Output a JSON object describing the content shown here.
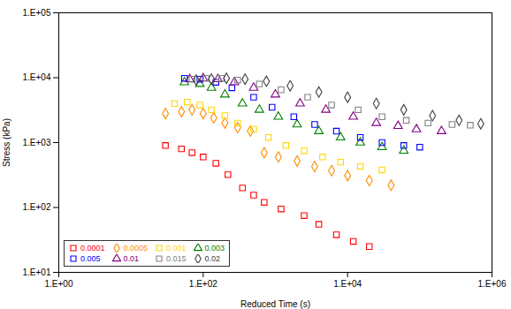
{
  "chart_data": {
    "type": "scatter",
    "xlabel": "Reduced Time (s)",
    "ylabel": "Stress (kPa)",
    "log": true,
    "grid": false,
    "legend": "lower left",
    "xlim": [
      1,
      1000000
    ],
    "ylim": [
      10,
      100000
    ],
    "xticks": [
      {
        "value": 1,
        "label": "1.E+00"
      },
      {
        "value": 100,
        "label": "1.E+02"
      },
      {
        "value": 10000,
        "label": "1.E+04"
      },
      {
        "value": 1000000,
        "label": "1.E+06"
      }
    ],
    "yticks": [
      {
        "value": 10,
        "label": "1.E+01"
      },
      {
        "value": 100,
        "label": "1.E+02"
      },
      {
        "value": 1000,
        "label": "1.E+03"
      },
      {
        "value": 10000,
        "label": "1.E+04"
      },
      {
        "value": 100000,
        "label": "1.E+05"
      }
    ],
    "series": [
      {
        "name": "0.0001",
        "color": "#FF0000",
        "marker": "square",
        "x": [
          30,
          50,
          70,
          100,
          150,
          220,
          350,
          500,
          700,
          1200,
          2500,
          4000,
          7000,
          12000,
          20000
        ],
        "values": [
          900,
          800,
          700,
          600,
          480,
          320,
          200,
          155,
          120,
          95,
          75,
          55,
          38,
          30,
          25
        ]
      },
      {
        "name": "0.0005",
        "color": "#FF8C00",
        "marker": "diamond",
        "x": [
          30,
          50,
          70,
          100,
          140,
          200,
          300,
          450,
          700,
          1100,
          2000,
          3500,
          6000,
          10000,
          20000,
          40000
        ],
        "values": [
          2800,
          3000,
          3200,
          2800,
          2400,
          2000,
          1700,
          1500,
          700,
          600,
          520,
          430,
          370,
          310,
          260,
          220
        ]
      },
      {
        "name": "0.001",
        "color": "#FFD700",
        "marker": "square",
        "x": [
          40,
          60,
          90,
          130,
          200,
          300,
          500,
          800,
          1400,
          2500,
          4500,
          8000,
          15000,
          30000
        ],
        "values": [
          4000,
          4200,
          3800,
          3200,
          2600,
          2000,
          1600,
          1200,
          900,
          750,
          600,
          500,
          430,
          380
        ]
      },
      {
        "name": "0.003",
        "color": "#008000",
        "marker": "triangle",
        "x": [
          55,
          90,
          130,
          200,
          350,
          600,
          1100,
          2000,
          4000,
          8000,
          15000,
          30000,
          60000
        ],
        "values": [
          8500,
          8000,
          7000,
          5500,
          4000,
          3200,
          2500,
          1900,
          1500,
          1200,
          1000,
          850,
          750
        ]
      },
      {
        "name": "0.005",
        "color": "#0000FF",
        "marker": "square",
        "x": [
          55,
          90,
          150,
          250,
          500,
          900,
          1800,
          3500,
          7000,
          15000,
          30000,
          60000,
          100000
        ],
        "values": [
          9800,
          9500,
          8500,
          7000,
          5000,
          3500,
          2500,
          1900,
          1500,
          1200,
          1000,
          900,
          850
        ]
      },
      {
        "name": "0.01",
        "color": "#800080",
        "marker": "triangle",
        "x": [
          65,
          100,
          160,
          270,
          500,
          1000,
          2200,
          5000,
          12000,
          25000,
          50000,
          90000,
          200000
        ],
        "values": [
          9500,
          9800,
          9500,
          8500,
          7000,
          5500,
          4000,
          3200,
          2500,
          2000,
          1800,
          1600,
          1500
        ]
      },
      {
        "name": "0.015",
        "color": "#808080",
        "marker": "square",
        "x": [
          70,
          110,
          180,
          300,
          600,
          1200,
          2800,
          6000,
          14000,
          30000,
          65000,
          130000,
          280000,
          500000
        ],
        "values": [
          9500,
          9800,
          9800,
          9200,
          8000,
          6500,
          5000,
          3800,
          3200,
          2500,
          2200,
          2000,
          1900,
          1850
        ]
      },
      {
        "name": "0.02",
        "color": "#404040",
        "marker": "diamond",
        "x": [
          80,
          130,
          210,
          380,
          750,
          1600,
          4000,
          10000,
          25000,
          60000,
          150000,
          350000,
          700000
        ],
        "values": [
          9200,
          9500,
          9800,
          9500,
          8800,
          7500,
          6000,
          5000,
          4000,
          3200,
          2600,
          2200,
          1950
        ]
      }
    ]
  }
}
